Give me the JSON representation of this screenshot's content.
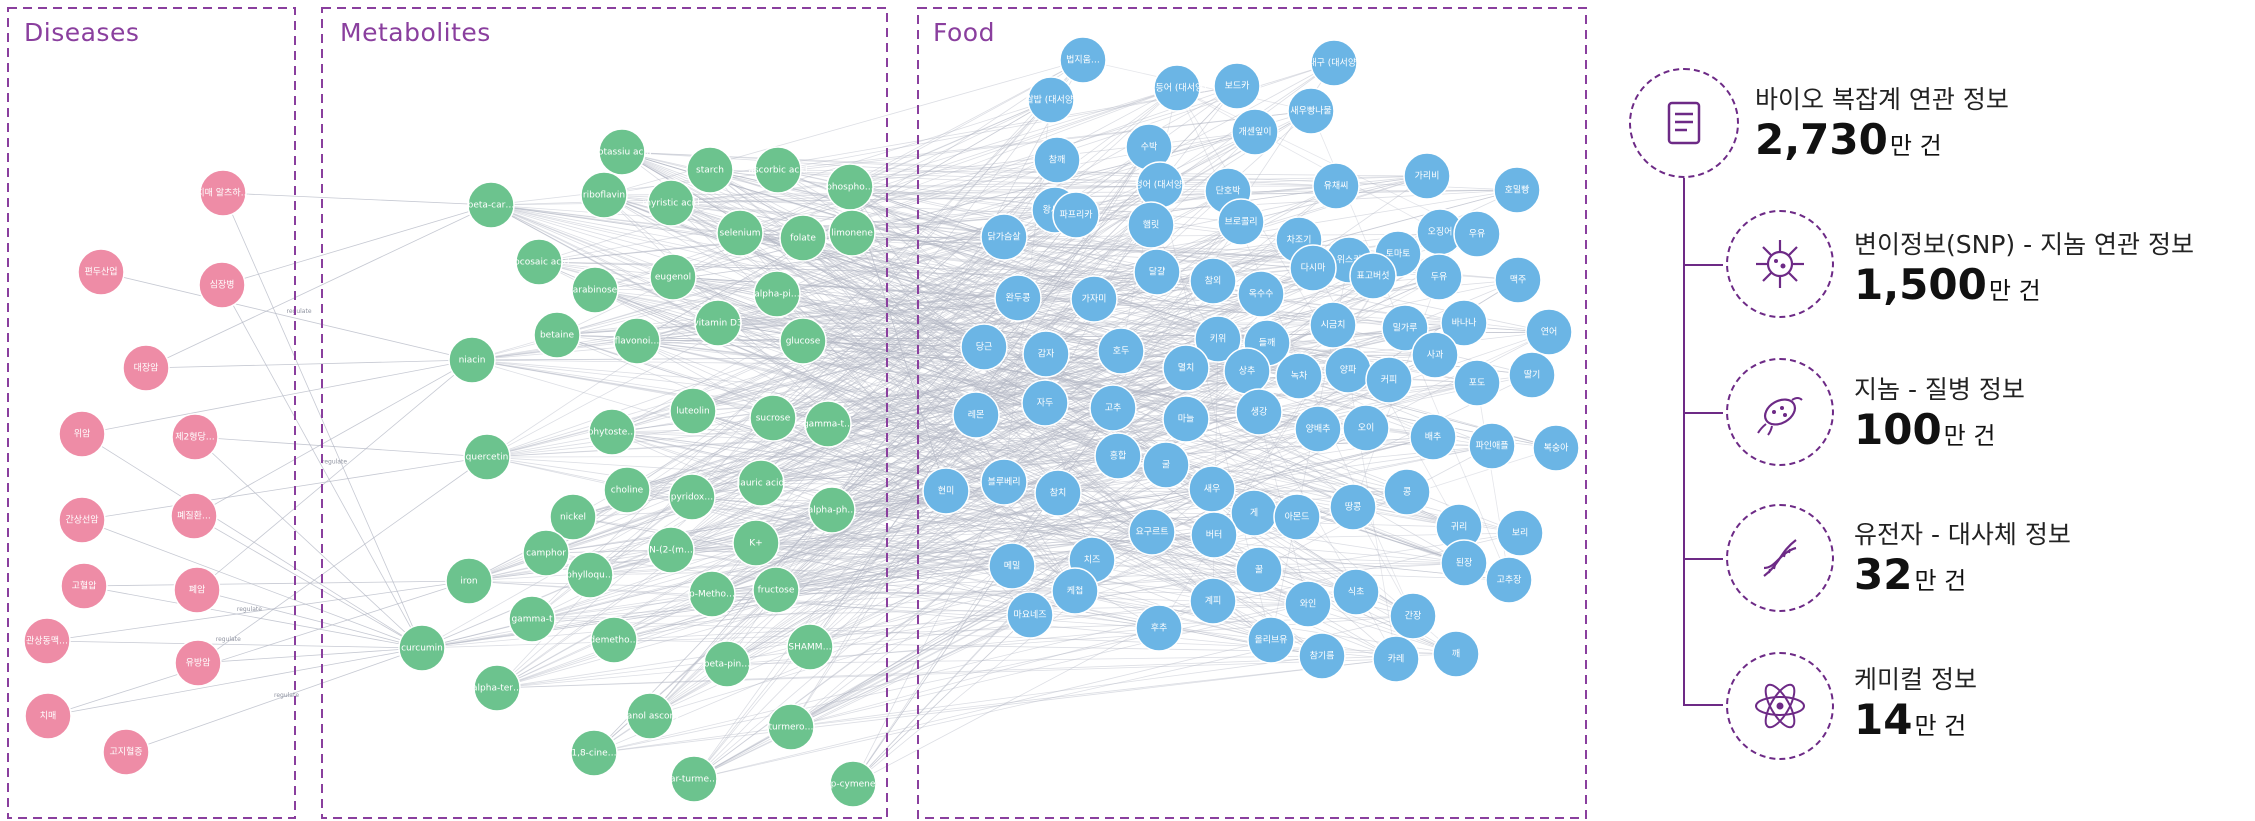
{
  "panels": [
    {
      "name": "Diseases"
    },
    {
      "name": "Metabolites"
    },
    {
      "name": "Food"
    }
  ],
  "edge_label": "regulate",
  "colors": {
    "disease": "#ee8ca6",
    "metabolite": "#6cc38e",
    "food": "#6bb5e5",
    "accent": "#6d2a86",
    "panel_border": "#8a3f9e",
    "edge": "#b3b7c4"
  },
  "nodes": {
    "diseases": [
      "치매 알츠하…",
      "심장병",
      "편두산업",
      "대장암",
      "위암",
      "제2형당…",
      "간상선암",
      "폐질환…",
      "고혈압",
      "폐암",
      "관상동맥…",
      "유방암",
      "치매",
      "고지혈증"
    ],
    "metabolites": [
      "potassiu acid",
      "starch",
      "ascorbic acid",
      "phospho…",
      "beta-car…",
      "riboflavin",
      "myristic acid",
      "selenium",
      "folate",
      "limonene",
      "docosaic acid",
      "eugenol",
      "alpha-pi…",
      "arabinose",
      "vitamin D3",
      "betaine",
      "flavonoi…",
      "glucose",
      "niacin",
      "luteolin",
      "sucrose",
      "gamma-t…",
      "phytoste…",
      "quercetin",
      "choline",
      "pyridox…",
      "lauric acid",
      "alpha-ph…",
      "nickel",
      "K+",
      "camphor",
      "N-(2-(m…",
      "phylloqu…",
      "iron",
      "p-Metho…",
      "fructose",
      "gamma-t",
      "curcumin",
      "demetho…",
      "beta-pin…",
      "SHAMM…",
      "alpha-ter…",
      "ethanol ascorb…",
      "turmero…",
      "1,8-cine…",
      "ar-turme…",
      "p-cymene"
    ],
    "foods": [
      "법지움…",
      "고등어 (대서양)",
      "보드카",
      "대구 (대서양)",
      "쌀밥 (대서양)",
      "개센잎이",
      "새우빵나물",
      "참깨",
      "수박",
      "왕새우",
      "청어 (대서양)",
      "단호박",
      "유채씨",
      "가리비",
      "호밀빵",
      "오징어",
      "닭가슴살",
      "파프리카",
      "햄릿",
      "브로콜리",
      "차조기",
      "위스키",
      "토마토",
      "우유",
      "완두콩",
      "가자미",
      "달걀",
      "참외",
      "옥수수",
      "다시마",
      "표고버섯",
      "두유",
      "맥주",
      "연어",
      "바나나",
      "밀가루",
      "시금치",
      "들깨",
      "키위",
      "당근",
      "감자",
      "호두",
      "멸치",
      "상추",
      "녹차",
      "양파",
      "커피",
      "사과",
      "포도",
      "딸기",
      "레몬",
      "자두",
      "고추",
      "마늘",
      "생강",
      "양배추",
      "오이",
      "배추",
      "파인애플",
      "복숭아",
      "블루베리",
      "참치",
      "홍합",
      "굴",
      "새우",
      "게",
      "아몬드",
      "땅콩",
      "콩",
      "귀리",
      "보리",
      "현미",
      "메밀",
      "치즈",
      "요구르트",
      "버터",
      "꿀",
      "와인",
      "식초",
      "간장",
      "된장",
      "고추장",
      "케첩",
      "마요네즈",
      "후추",
      "계피",
      "올리브유",
      "참기름",
      "카레",
      "깨"
    ]
  },
  "stats": [
    {
      "icon": "document-icon",
      "label": "바이오 복잡계 연관 정보",
      "value": "2,730",
      "unit": "만 건"
    },
    {
      "icon": "virus-icon",
      "label": "변이정보(SNP) - 지놈 연관 정보",
      "value": "1,500",
      "unit": "만 건"
    },
    {
      "icon": "bacteria-icon",
      "label": "지놈 - 질병 정보",
      "value": "100",
      "unit": "만 건"
    },
    {
      "icon": "dna-icon",
      "label": "유전자 - 대사체 정보",
      "value": "32",
      "unit": "만 건"
    },
    {
      "icon": "atom-icon",
      "label": "케미컬 정보",
      "value": "14",
      "unit": "만 건"
    }
  ]
}
